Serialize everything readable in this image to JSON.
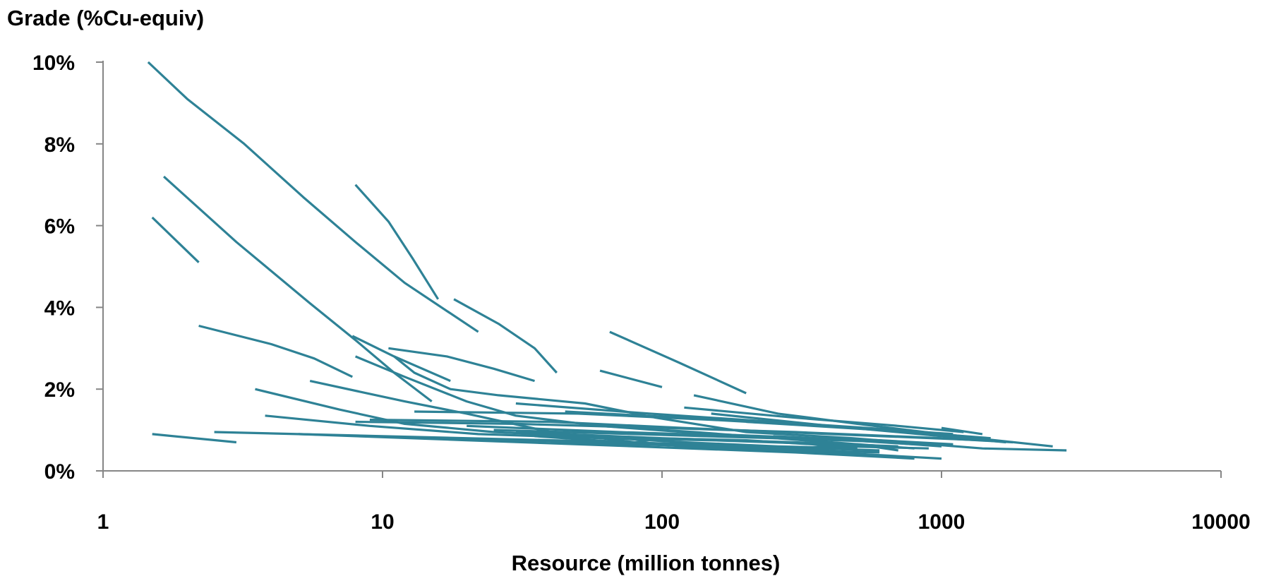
{
  "chart_data": {
    "type": "line",
    "title": "",
    "ylabel": "Grade (%Cu-equiv)",
    "xlabel": "Resource (million tonnes)",
    "x_scale": "log",
    "xlim": [
      1,
      10000
    ],
    "ylim": [
      0,
      10
    ],
    "x_ticks": [
      "1",
      "10",
      "100",
      "1000",
      "10000"
    ],
    "y_ticks": [
      "0%",
      "2%",
      "4%",
      "6%",
      "8%",
      "10%"
    ],
    "grid": false,
    "legend": "none",
    "line_color": "#2e8296",
    "series": [
      {
        "points": [
          [
            1.45,
            10.0
          ],
          [
            2.0,
            9.1
          ],
          [
            3.2,
            8.0
          ],
          [
            5.2,
            6.7
          ],
          [
            8.0,
            5.6
          ],
          [
            12,
            4.6
          ],
          [
            22,
            3.4
          ]
        ]
      },
      {
        "points": [
          [
            1.65,
            7.2
          ],
          [
            3.0,
            5.6
          ],
          [
            5.5,
            4.1
          ],
          [
            8.0,
            3.2
          ],
          [
            11,
            2.4
          ],
          [
            15,
            1.7
          ]
        ]
      },
      {
        "points": [
          [
            1.5,
            6.2
          ],
          [
            2.2,
            5.1
          ]
        ]
      },
      {
        "points": [
          [
            8.0,
            7.0
          ],
          [
            10.5,
            6.1
          ],
          [
            12.8,
            5.2
          ],
          [
            15.8,
            4.2
          ]
        ]
      },
      {
        "points": [
          [
            2.2,
            3.55
          ],
          [
            4.0,
            3.1
          ],
          [
            5.7,
            2.75
          ],
          [
            7.8,
            2.3
          ]
        ]
      },
      {
        "points": [
          [
            7.8,
            3.3
          ],
          [
            11,
            2.8
          ],
          [
            13,
            2.4
          ],
          [
            17.5,
            2.0
          ],
          [
            26,
            1.85
          ],
          [
            53,
            1.65
          ],
          [
            95,
            1.3
          ],
          [
            200,
            0.95
          ],
          [
            480,
            0.8
          ],
          [
            1400,
            0.55
          ],
          [
            2800,
            0.5
          ]
        ]
      },
      {
        "points": [
          [
            10.5,
            3.0
          ],
          [
            17,
            2.8
          ],
          [
            25,
            2.5
          ],
          [
            35,
            2.2
          ]
        ]
      },
      {
        "points": [
          [
            11,
            2.8
          ],
          [
            17.5,
            2.2
          ]
        ]
      },
      {
        "points": [
          [
            18,
            4.2
          ],
          [
            26,
            3.6
          ],
          [
            35,
            3.0
          ],
          [
            42,
            2.4
          ]
        ]
      },
      {
        "points": [
          [
            65,
            3.4
          ],
          [
            115,
            2.65
          ],
          [
            200,
            1.9
          ]
        ]
      },
      {
        "points": [
          [
            60,
            2.45
          ],
          [
            100,
            2.05
          ]
        ]
      },
      {
        "points": [
          [
            8.0,
            2.8
          ],
          [
            12,
            2.3
          ],
          [
            20,
            1.7
          ],
          [
            30,
            1.35
          ],
          [
            60,
            1.1
          ],
          [
            130,
            0.95
          ],
          [
            320,
            0.75
          ],
          [
            800,
            0.55
          ]
        ]
      },
      {
        "points": [
          [
            3.5,
            2.0
          ],
          [
            7.0,
            1.5
          ],
          [
            12,
            1.15
          ],
          [
            25,
            0.95
          ],
          [
            50,
            0.85
          ],
          [
            120,
            0.7
          ],
          [
            260,
            0.6
          ],
          [
            500,
            0.55
          ]
        ]
      },
      {
        "points": [
          [
            5.5,
            2.2
          ],
          [
            12,
            1.7
          ],
          [
            20,
            1.4
          ],
          [
            40,
            0.95
          ],
          [
            80,
            0.7
          ],
          [
            200,
            0.55
          ],
          [
            500,
            0.4
          ]
        ]
      },
      {
        "points": [
          [
            3.8,
            1.35
          ],
          [
            9,
            1.1
          ],
          [
            22,
            0.9
          ],
          [
            60,
            0.8
          ],
          [
            150,
            0.75
          ],
          [
            400,
            0.65
          ]
        ]
      },
      {
        "points": [
          [
            1.5,
            0.9
          ],
          [
            3.0,
            0.7
          ]
        ]
      },
      {
        "points": [
          [
            2.5,
            0.95
          ],
          [
            10,
            0.85
          ],
          [
            40,
            0.75
          ],
          [
            130,
            0.65
          ],
          [
            400,
            0.45
          ],
          [
            1000,
            0.3
          ]
        ]
      },
      {
        "points": [
          [
            5,
            0.9
          ],
          [
            20,
            0.75
          ],
          [
            80,
            0.6
          ],
          [
            300,
            0.45
          ],
          [
            800,
            0.3
          ]
        ]
      },
      {
        "points": [
          [
            8,
            1.2
          ],
          [
            30,
            1.15
          ],
          [
            100,
            1.05
          ],
          [
            300,
            0.95
          ],
          [
            1000,
            0.8
          ],
          [
            1800,
            0.7
          ]
        ]
      },
      {
        "points": [
          [
            9,
            1.25
          ],
          [
            40,
            1.2
          ],
          [
            120,
            1.05
          ],
          [
            400,
            0.9
          ],
          [
            1400,
            0.75
          ]
        ]
      },
      {
        "points": [
          [
            13,
            1.45
          ],
          [
            50,
            1.4
          ],
          [
            150,
            1.25
          ],
          [
            500,
            1.05
          ],
          [
            1500,
            0.8
          ]
        ]
      },
      {
        "points": [
          [
            30,
            1.65
          ],
          [
            90,
            1.4
          ],
          [
            250,
            1.2
          ],
          [
            700,
            1.0
          ],
          [
            2500,
            0.6
          ]
        ]
      },
      {
        "points": [
          [
            45,
            1.45
          ],
          [
            120,
            1.3
          ],
          [
            400,
            1.1
          ],
          [
            1100,
            0.9
          ]
        ]
      },
      {
        "points": [
          [
            130,
            1.85
          ],
          [
            260,
            1.4
          ],
          [
            500,
            1.15
          ],
          [
            1000,
            0.9
          ],
          [
            1400,
            0.8
          ]
        ]
      },
      {
        "points": [
          [
            120,
            1.55
          ],
          [
            300,
            1.3
          ],
          [
            700,
            1.1
          ],
          [
            1200,
            0.95
          ]
        ]
      },
      {
        "points": [
          [
            150,
            1.4
          ],
          [
            400,
            1.1
          ],
          [
            1000,
            0.85
          ]
        ]
      },
      {
        "points": [
          [
            200,
            1.2
          ],
          [
            600,
            1.0
          ],
          [
            1700,
            0.7
          ]
        ]
      },
      {
        "points": [
          [
            1000,
            1.05
          ],
          [
            1400,
            0.9
          ]
        ]
      },
      {
        "points": [
          [
            20,
            1.1
          ],
          [
            70,
            0.95
          ],
          [
            200,
            0.85
          ],
          [
            600,
            0.75
          ],
          [
            1100,
            0.65
          ]
        ]
      },
      {
        "points": [
          [
            25,
            1.0
          ],
          [
            80,
            0.9
          ],
          [
            250,
            0.8
          ],
          [
            700,
            0.7
          ]
        ]
      },
      {
        "points": [
          [
            30,
            0.95
          ],
          [
            100,
            0.8
          ],
          [
            300,
            0.7
          ],
          [
            700,
            0.6
          ]
        ]
      },
      {
        "points": [
          [
            35,
            0.85
          ],
          [
            120,
            0.6
          ],
          [
            300,
            0.5
          ],
          [
            600,
            0.45
          ]
        ]
      },
      {
        "points": [
          [
            40,
            0.7
          ],
          [
            150,
            0.6
          ],
          [
            350,
            0.55
          ],
          [
            600,
            0.5
          ]
        ]
      },
      {
        "points": [
          [
            15,
            0.8
          ],
          [
            60,
            0.7
          ],
          [
            200,
            0.6
          ],
          [
            500,
            0.45
          ]
        ]
      },
      {
        "points": [
          [
            60,
            1.1
          ],
          [
            150,
            0.9
          ],
          [
            350,
            0.8
          ],
          [
            800,
            0.65
          ]
        ]
      },
      {
        "points": [
          [
            90,
            0.8
          ],
          [
            200,
            0.75
          ],
          [
            450,
            0.6
          ],
          [
            900,
            0.55
          ]
        ]
      },
      {
        "points": [
          [
            250,
            0.85
          ],
          [
            500,
            0.75
          ],
          [
            1000,
            0.6
          ]
        ]
      },
      {
        "points": [
          [
            300,
            0.55
          ],
          [
            500,
            0.65
          ],
          [
            700,
            0.5
          ]
        ]
      },
      {
        "points": [
          [
            80,
            0.7
          ],
          [
            90,
            0.75
          ]
        ]
      }
    ]
  }
}
